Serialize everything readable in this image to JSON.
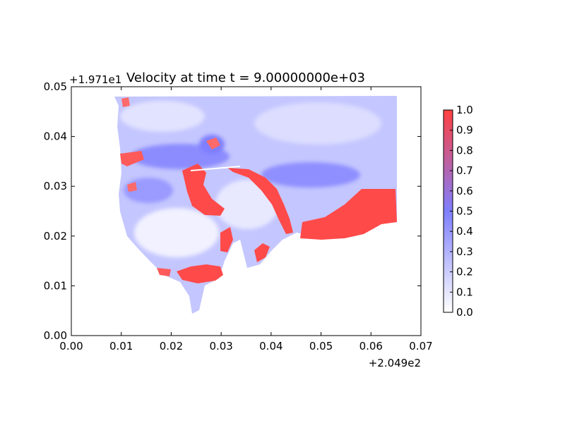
{
  "chart_data": {
    "type": "heatmap",
    "title": "Velocity at time t = 9.00000000e+03",
    "xlabel": "",
    "ylabel": "",
    "x_offset_label": "+2.049e2",
    "y_offset_label": "+1.971e1",
    "xlim": [
      0.0,
      0.07
    ],
    "ylim": [
      0.0,
      0.05
    ],
    "x_ticks": [
      "0.00",
      "0.01",
      "0.02",
      "0.03",
      "0.04",
      "0.05",
      "0.06",
      "0.07"
    ],
    "y_ticks": [
      "0.00",
      "0.01",
      "0.02",
      "0.03",
      "0.04",
      "0.05"
    ],
    "colorbar": {
      "range": [
        0.0,
        1.0
      ],
      "ticks": [
        "0.0",
        "0.1",
        "0.2",
        "0.3",
        "0.4",
        "0.5",
        "0.6",
        "0.7",
        "0.8",
        "0.9",
        "1.0"
      ],
      "colors": [
        "#ffffff",
        "#7f7fff",
        "#ff4040"
      ]
    },
    "grid": false,
    "field_extent": {
      "x": [
        0.0075,
        0.065
      ],
      "y": [
        0.003,
        0.048
      ]
    }
  }
}
